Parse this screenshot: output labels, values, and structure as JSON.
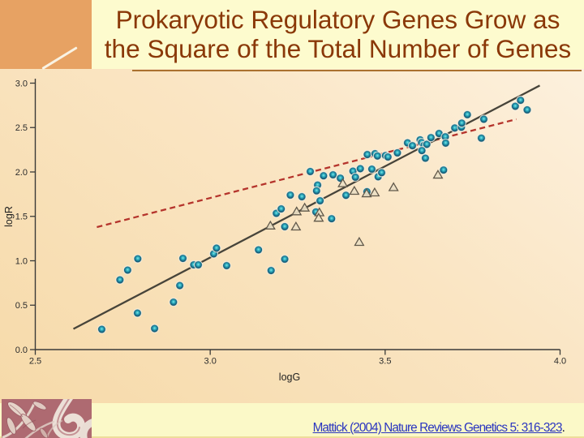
{
  "slide": {
    "title": {
      "line1": "Prokaryotic Regulatory Genes Grow as",
      "line2": "the Square of the Total Number of Genes"
    },
    "citation": {
      "link_text": "Mattick (2004) Nature Reviews Genetics 5: 316-323",
      "suffix": "."
    }
  },
  "colors": {
    "title_text": "#8a3808",
    "title_bar_bg": "#fdfbce",
    "orange_block": "#e7a263",
    "slide_bg_light": "#fdf3e3",
    "slide_bg_dark": "#f7dbab",
    "footer_bg": "#fbf9c8",
    "citation_link": "#2a35c0",
    "circle_marker": "#2aa9bc",
    "triangle_marker": "#ece0c4",
    "fit_line": "#47443a",
    "dashed_line": "#b5342c"
  },
  "chart_data": {
    "type": "scatter",
    "title": "",
    "xlabel": "logG",
    "ylabel": "logR",
    "xlim": [
      2.5,
      4.0
    ],
    "ylim": [
      0.0,
      3.0
    ],
    "x_ticks": [
      2.5,
      3.0,
      3.5,
      4.0
    ],
    "y_ticks": [
      0.0,
      0.5,
      1.0,
      1.5,
      2.0,
      2.5,
      3.0
    ],
    "grid": false,
    "legend": null,
    "series": [
      {
        "name": "prokaryotic-genomes-circles",
        "marker": "circle",
        "points": [
          [
            2.69,
            0.228
          ],
          [
            2.742,
            0.785
          ],
          [
            2.764,
            0.895
          ],
          [
            2.793,
            1.023
          ],
          [
            2.792,
            0.411
          ],
          [
            2.841,
            0.237
          ],
          [
            2.895,
            0.534
          ],
          [
            2.913,
            0.721
          ],
          [
            2.922,
            1.027
          ],
          [
            2.953,
            0.954
          ],
          [
            2.966,
            0.954
          ],
          [
            3.01,
            1.078
          ],
          [
            3.018,
            1.142
          ],
          [
            3.047,
            0.945
          ],
          [
            3.138,
            1.123
          ],
          [
            3.174,
            0.89
          ],
          [
            3.213,
            1.018
          ],
          [
            3.213,
            1.384
          ],
          [
            3.189,
            1.534
          ],
          [
            3.203,
            1.584
          ],
          [
            3.229,
            1.74
          ],
          [
            3.262,
            1.721
          ],
          [
            3.302,
            1.55
          ],
          [
            3.314,
            1.676
          ],
          [
            3.347,
            1.474
          ],
          [
            3.286,
            2.005
          ],
          [
            3.324,
            1.957
          ],
          [
            3.351,
            1.968
          ],
          [
            3.372,
            1.93
          ],
          [
            3.307,
            1.853
          ],
          [
            3.304,
            1.788
          ],
          [
            3.388,
            1.737
          ],
          [
            3.408,
            2.009
          ],
          [
            3.415,
            1.941
          ],
          [
            3.429,
            2.037
          ],
          [
            3.449,
            2.196
          ],
          [
            3.448,
            1.778
          ],
          [
            3.462,
            2.032
          ],
          [
            3.471,
            2.206
          ],
          [
            3.478,
            2.18
          ],
          [
            3.48,
            1.946
          ],
          [
            3.49,
            1.992
          ],
          [
            3.501,
            2.185
          ],
          [
            3.508,
            2.169
          ],
          [
            3.535,
            2.215
          ],
          [
            3.564,
            2.328
          ],
          [
            3.578,
            2.296
          ],
          [
            3.6,
            2.362
          ],
          [
            3.604,
            2.331
          ],
          [
            3.611,
            2.299
          ],
          [
            3.619,
            2.311
          ],
          [
            3.605,
            2.241
          ],
          [
            3.615,
            2.155
          ],
          [
            3.631,
            2.387
          ],
          [
            3.654,
            2.433
          ],
          [
            3.672,
            2.396
          ],
          [
            3.673,
            2.325
          ],
          [
            3.667,
            2.022
          ],
          [
            3.699,
            2.495
          ],
          [
            3.718,
            2.504
          ],
          [
            3.719,
            2.55
          ],
          [
            3.735,
            2.645
          ],
          [
            3.782,
            2.594
          ],
          [
            3.775,
            2.381
          ],
          [
            3.872,
            2.74
          ],
          [
            3.887,
            2.807
          ],
          [
            3.906,
            2.699
          ]
        ]
      },
      {
        "name": "triangles",
        "marker": "triangle",
        "points": [
          [
            3.172,
            1.39
          ],
          [
            3.247,
            1.55
          ],
          [
            3.27,
            1.592
          ],
          [
            3.245,
            1.379
          ],
          [
            3.312,
            1.539
          ],
          [
            3.31,
            1.478
          ],
          [
            3.379,
            1.867
          ],
          [
            3.412,
            1.781
          ],
          [
            3.447,
            1.753
          ],
          [
            3.47,
            1.763
          ],
          [
            3.524,
            1.822
          ],
          [
            3.426,
            1.206
          ],
          [
            3.651,
            1.963
          ]
        ]
      }
    ],
    "lines": [
      {
        "name": "fit-slope-2",
        "style": "solid",
        "x": [
          2.609,
          3.942
        ],
        "y": [
          0.233,
          2.973
        ]
      },
      {
        "name": "reference-slope-1",
        "style": "dashed",
        "x": [
          2.676,
          3.875
        ],
        "y": [
          1.379,
          2.594
        ]
      }
    ]
  }
}
